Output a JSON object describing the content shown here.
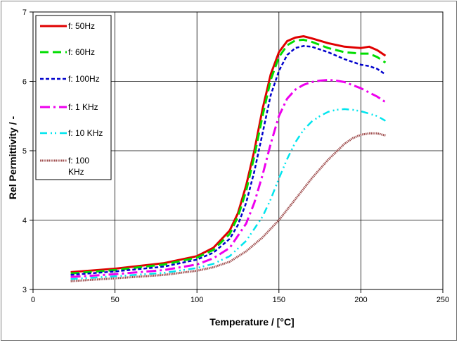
{
  "chart_data": {
    "type": "line",
    "title": "",
    "xlabel": "Temperature  / [°C]",
    "ylabel": "Rel Permittivity  /  -",
    "xlim": [
      0,
      250
    ],
    "ylim": [
      3,
      7
    ],
    "xticks": [
      0,
      50,
      100,
      150,
      200,
      250
    ],
    "yticks": [
      3,
      4,
      5,
      6,
      7
    ],
    "grid": true,
    "legend_position": "top-left",
    "series": [
      {
        "name": "f: 50Hz",
        "color": "#e00000",
        "dash": "solid",
        "x": [
          23,
          50,
          80,
          100,
          110,
          120,
          125,
          130,
          135,
          140,
          145,
          150,
          155,
          160,
          165,
          170,
          180,
          190,
          200,
          205,
          210,
          215
        ],
        "y": [
          3.25,
          3.3,
          3.38,
          3.48,
          3.6,
          3.85,
          4.1,
          4.5,
          5.0,
          5.6,
          6.1,
          6.42,
          6.58,
          6.63,
          6.65,
          6.62,
          6.55,
          6.5,
          6.48,
          6.5,
          6.45,
          6.37
        ]
      },
      {
        "name": "f: 60Hz",
        "color": "#00dd00",
        "dash": "longdash",
        "x": [
          23,
          50,
          80,
          100,
          110,
          120,
          125,
          130,
          135,
          140,
          145,
          150,
          155,
          160,
          165,
          170,
          180,
          190,
          200,
          205,
          210,
          215
        ],
        "y": [
          3.23,
          3.28,
          3.36,
          3.46,
          3.57,
          3.8,
          4.05,
          4.42,
          4.92,
          5.5,
          6.02,
          6.35,
          6.52,
          6.59,
          6.6,
          6.57,
          6.48,
          6.42,
          6.4,
          6.4,
          6.35,
          6.27
        ]
      },
      {
        "name": "f: 100Hz",
        "color": "#0000cc",
        "dash": "dash",
        "x": [
          23,
          50,
          80,
          100,
          110,
          120,
          125,
          130,
          135,
          140,
          145,
          150,
          155,
          160,
          165,
          170,
          180,
          190,
          200,
          205,
          210,
          215
        ],
        "y": [
          3.21,
          3.26,
          3.33,
          3.43,
          3.53,
          3.73,
          3.93,
          4.25,
          4.7,
          5.25,
          5.8,
          6.15,
          6.38,
          6.48,
          6.51,
          6.5,
          6.42,
          6.32,
          6.24,
          6.22,
          6.18,
          6.1
        ]
      },
      {
        "name": "f: 1 KHz",
        "color": "#ee00ee",
        "dash": "dashdot",
        "x": [
          23,
          50,
          80,
          100,
          110,
          120,
          130,
          135,
          140,
          145,
          150,
          155,
          160,
          165,
          170,
          175,
          180,
          185,
          190,
          200,
          210,
          215
        ],
        "y": [
          3.18,
          3.22,
          3.28,
          3.36,
          3.45,
          3.6,
          3.95,
          4.25,
          4.65,
          5.1,
          5.5,
          5.75,
          5.88,
          5.95,
          5.99,
          6.01,
          6.02,
          6.01,
          5.99,
          5.9,
          5.78,
          5.7
        ]
      },
      {
        "name": "f: 10 KHz",
        "color": "#00e5ee",
        "dash": "dashdotdot",
        "x": [
          23,
          50,
          80,
          100,
          110,
          120,
          130,
          140,
          145,
          150,
          155,
          160,
          165,
          170,
          175,
          180,
          185,
          190,
          195,
          200,
          210,
          215
        ],
        "y": [
          3.15,
          3.19,
          3.24,
          3.31,
          3.37,
          3.48,
          3.7,
          4.05,
          4.3,
          4.6,
          4.88,
          5.12,
          5.3,
          5.42,
          5.5,
          5.56,
          5.59,
          5.6,
          5.59,
          5.57,
          5.5,
          5.43
        ]
      },
      {
        "name": "f: 100\nKHz",
        "color": "#a05050",
        "dash": "dotted-thick",
        "x": [
          23,
          50,
          80,
          100,
          110,
          120,
          130,
          140,
          150,
          160,
          170,
          180,
          190,
          195,
          200,
          205,
          210,
          215
        ],
        "y": [
          3.12,
          3.16,
          3.21,
          3.27,
          3.32,
          3.4,
          3.55,
          3.75,
          4.0,
          4.3,
          4.6,
          4.87,
          5.1,
          5.18,
          5.23,
          5.25,
          5.25,
          5.22
        ]
      }
    ]
  }
}
